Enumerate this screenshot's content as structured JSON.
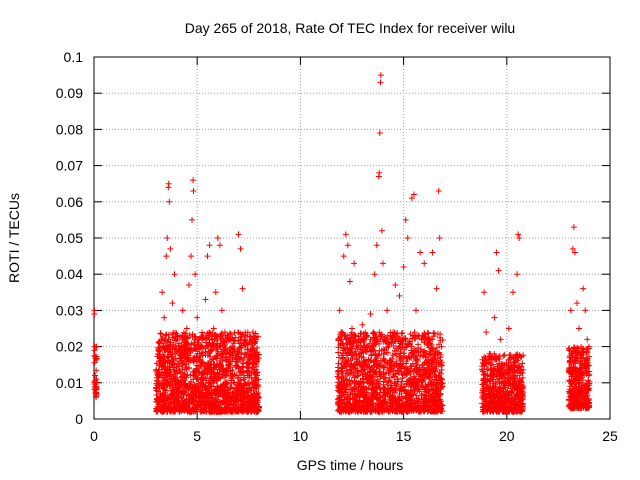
{
  "chart_data": {
    "type": "scatter",
    "title": "Day 265 of 2018, Rate Of TEC Index for receiver wilu",
    "xlabel": "GPS time / hours",
    "ylabel": "ROTI / TECUs",
    "xlim": [
      0,
      25
    ],
    "ylim": [
      0,
      0.1
    ],
    "x_ticks": [
      "0",
      "5",
      "10",
      "15",
      "20",
      "25"
    ],
    "y_ticks": [
      "0",
      "0.01",
      "0.02",
      "0.03",
      "0.04",
      "0.05",
      "0.06",
      "0.07",
      "0.08",
      "0.09",
      "0.1"
    ],
    "grid": true,
    "marker": "+",
    "color": "#ff0000",
    "series": [
      {
        "points": [
          [
            0.02,
            0.03
          ],
          [
            0.02,
            0.029
          ],
          [
            0.03,
            0.02
          ],
          [
            0.03,
            0.019
          ],
          [
            0.05,
            0.012
          ],
          [
            0.05,
            0.01
          ],
          [
            0.07,
            0.008
          ],
          [
            0.07,
            0.007
          ],
          [
            0.1,
            0.009
          ],
          [
            0.1,
            0.006
          ],
          [
            0.12,
            0.011
          ],
          [
            0.12,
            0.02
          ],
          [
            3.1,
            0.018
          ],
          [
            3.2,
            0.012
          ],
          [
            3.3,
            0.035
          ],
          [
            3.4,
            0.028
          ],
          [
            3.5,
            0.045
          ],
          [
            3.55,
            0.05
          ],
          [
            3.6,
            0.064
          ],
          [
            3.62,
            0.065
          ],
          [
            3.65,
            0.06
          ],
          [
            3.7,
            0.047
          ],
          [
            3.8,
            0.032
          ],
          [
            3.9,
            0.04
          ],
          [
            4.0,
            0.022
          ],
          [
            4.1,
            0.015
          ],
          [
            4.2,
            0.01
          ],
          [
            4.3,
            0.03
          ],
          [
            4.4,
            0.018
          ],
          [
            4.5,
            0.025
          ],
          [
            4.6,
            0.037
          ],
          [
            4.7,
            0.045
          ],
          [
            4.75,
            0.055
          ],
          [
            4.8,
            0.066
          ],
          [
            4.82,
            0.063
          ],
          [
            4.9,
            0.04
          ],
          [
            5.0,
            0.028
          ],
          [
            5.2,
            0.02
          ],
          [
            5.4,
            0.033
          ],
          [
            5.5,
            0.045
          ],
          [
            5.6,
            0.048
          ],
          [
            5.7,
            0.015
          ],
          [
            5.8,
            0.025
          ],
          [
            5.9,
            0.035
          ],
          [
            6.0,
            0.05
          ],
          [
            6.1,
            0.048
          ],
          [
            6.2,
            0.03
          ],
          [
            6.3,
            0.02
          ],
          [
            6.4,
            0.012
          ],
          [
            6.6,
            0.018
          ],
          [
            6.8,
            0.01
          ],
          [
            7.0,
            0.051
          ],
          [
            7.1,
            0.047
          ],
          [
            7.2,
            0.036
          ],
          [
            7.3,
            0.022
          ],
          [
            7.5,
            0.014
          ],
          [
            7.7,
            0.024
          ],
          [
            7.9,
            0.012
          ],
          [
            11.9,
            0.03
          ],
          [
            12.0,
            0.022
          ],
          [
            12.1,
            0.045
          ],
          [
            12.2,
            0.051
          ],
          [
            12.3,
            0.048
          ],
          [
            12.4,
            0.038
          ],
          [
            12.5,
            0.025
          ],
          [
            12.6,
            0.043
          ],
          [
            12.7,
            0.018
          ],
          [
            12.8,
            0.012
          ],
          [
            13.0,
            0.026
          ],
          [
            13.2,
            0.02
          ],
          [
            13.4,
            0.029
          ],
          [
            13.6,
            0.04
          ],
          [
            13.7,
            0.048
          ],
          [
            13.8,
            0.067
          ],
          [
            13.82,
            0.068
          ],
          [
            13.85,
            0.079
          ],
          [
            13.88,
            0.093
          ],
          [
            13.9,
            0.095
          ],
          [
            13.95,
            0.052
          ],
          [
            14.0,
            0.043
          ],
          [
            14.2,
            0.03
          ],
          [
            14.4,
            0.022
          ],
          [
            14.6,
            0.037
          ],
          [
            14.8,
            0.034
          ],
          [
            15.0,
            0.042
          ],
          [
            15.1,
            0.055
          ],
          [
            15.2,
            0.05
          ],
          [
            15.4,
            0.061
          ],
          [
            15.5,
            0.062
          ],
          [
            15.6,
            0.03
          ],
          [
            15.8,
            0.046
          ],
          [
            16.0,
            0.043
          ],
          [
            16.2,
            0.022
          ],
          [
            16.4,
            0.046
          ],
          [
            16.6,
            0.036
          ],
          [
            16.7,
            0.063
          ],
          [
            16.75,
            0.05
          ],
          [
            18.9,
            0.035
          ],
          [
            19.0,
            0.024
          ],
          [
            19.2,
            0.018
          ],
          [
            19.4,
            0.028
          ],
          [
            19.5,
            0.046
          ],
          [
            19.6,
            0.041
          ],
          [
            19.7,
            0.022
          ],
          [
            19.9,
            0.015
          ],
          [
            20.1,
            0.025
          ],
          [
            20.3,
            0.035
          ],
          [
            20.5,
            0.04
          ],
          [
            20.55,
            0.051
          ],
          [
            20.6,
            0.05
          ],
          [
            23.1,
            0.03
          ],
          [
            23.2,
            0.047
          ],
          [
            23.25,
            0.053
          ],
          [
            23.3,
            0.046
          ],
          [
            23.4,
            0.032
          ],
          [
            23.5,
            0.025
          ],
          [
            23.6,
            0.018
          ],
          [
            23.7,
            0.036
          ],
          [
            23.8,
            0.03
          ],
          [
            23.9,
            0.022
          ]
        ]
      }
    ],
    "dense_bands": [
      {
        "x0": 0.0,
        "x1": 0.15,
        "y0": 0.006,
        "y1": 0.02,
        "n": 25
      },
      {
        "x0": 3.0,
        "x1": 8.0,
        "y0": 0.002,
        "y1": 0.024,
        "n": 1700
      },
      {
        "x0": 11.8,
        "x1": 16.9,
        "y0": 0.002,
        "y1": 0.024,
        "n": 1600
      },
      {
        "x0": 18.8,
        "x1": 20.8,
        "y0": 0.002,
        "y1": 0.018,
        "n": 650
      },
      {
        "x0": 23.0,
        "x1": 24.0,
        "y0": 0.003,
        "y1": 0.02,
        "n": 380
      }
    ]
  }
}
